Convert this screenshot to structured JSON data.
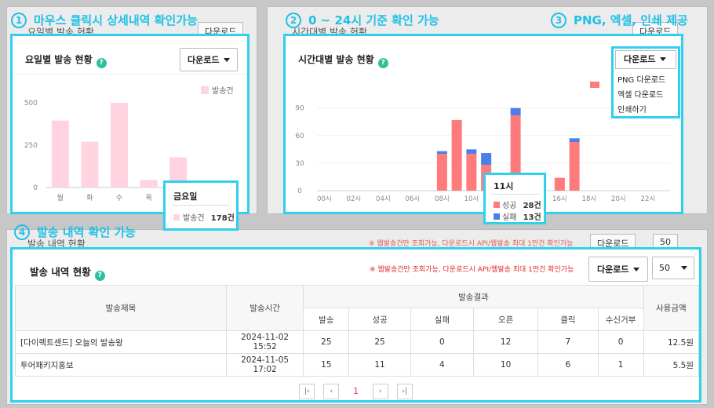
{
  "annotations": [
    {
      "num": "1",
      "text": "마우스 클릭시 상세내역 확인가능"
    },
    {
      "num": "2",
      "text": "0 ~ 24시 기준 확인 가능"
    },
    {
      "num": "3",
      "text": "PNG, 엑셀, 인쇄 제공"
    },
    {
      "num": "4",
      "text": "발송 내역 확인 가능"
    }
  ],
  "background": {
    "weekday_title": "요일별 발송 현황",
    "hourly_title": "시간대별 발송 현황",
    "history_title": "발송 내역 현황",
    "download_label": "다운로드",
    "note": "※ 웹발송건만 조회가능, 다운로드시 API/웹발송 최대 1만건 확인가능",
    "page_size": "50"
  },
  "weekday_chart": {
    "title": "요일별 발송 현황",
    "download_label": "다운로드",
    "legend_label": "발송건",
    "bar_color": "#ffd3e0",
    "chart_data": {
      "type": "bar",
      "categories": [
        "월",
        "화",
        "수",
        "목",
        "금"
      ],
      "values": [
        395,
        270,
        500,
        45,
        178
      ],
      "ylim": [
        0,
        500
      ],
      "yticks": [
        0,
        250,
        500
      ],
      "legend": "top-right",
      "series": [
        {
          "name": "발송건",
          "values": [
            395,
            270,
            500,
            45,
            178
          ]
        }
      ]
    },
    "tooltip": {
      "title": "금요일",
      "label": "발송건",
      "value": "178건"
    }
  },
  "hourly_chart": {
    "title": "시간대별 발송 현황",
    "download_label": "다운로드",
    "dropdown_items": [
      "PNG 다운로드",
      "엑셀 다운로드",
      "인쇄하기"
    ],
    "success_color": "#ff7b7b",
    "fail_color": "#4d7ee8",
    "chart_data": {
      "type": "bar",
      "stacked": true,
      "categories": [
        "00시",
        "01시",
        "02시",
        "03시",
        "04시",
        "05시",
        "06시",
        "07시",
        "08시",
        "09시",
        "10시",
        "11시",
        "12시",
        "13시",
        "14시",
        "15시",
        "16시",
        "17시",
        "18시",
        "19시",
        "20시",
        "21시",
        "22시",
        "23시"
      ],
      "xtick_labels": [
        "00시",
        "02시",
        "04시",
        "06시",
        "08시",
        "10시",
        "12시",
        "14시",
        "16시",
        "18시",
        "20시",
        "22시"
      ],
      "ylim": [
        0,
        100
      ],
      "yticks": [
        0,
        30,
        60,
        90
      ],
      "legend": "top-right",
      "series": [
        {
          "name": "성공",
          "values": [
            0,
            0,
            0,
            0,
            0,
            0,
            0,
            0,
            40,
            77,
            40,
            28,
            0,
            82,
            0,
            0,
            14,
            53,
            0,
            0,
            0,
            0,
            0,
            0
          ]
        },
        {
          "name": "실패",
          "values": [
            0,
            0,
            0,
            0,
            0,
            0,
            0,
            0,
            3,
            0,
            5,
            13,
            0,
            8,
            0,
            0,
            0,
            4,
            0,
            0,
            0,
            0,
            0,
            0
          ]
        }
      ]
    },
    "tooltip": {
      "title": "11시",
      "rows": [
        {
          "label": "성공",
          "value": "28건"
        },
        {
          "label": "실패",
          "value": "13건"
        }
      ]
    }
  },
  "history": {
    "title": "발송 내역 현황",
    "note": "※ 웹발송건만 조회가능, 다운로드시 API/웹발송 최대 1만건 확인가능",
    "download_label": "다운로드",
    "page_size": "50",
    "headers": {
      "title": "발송제목",
      "time": "발송시간",
      "result": "발송결과",
      "sent": "발송",
      "success": "성공",
      "fail": "실패",
      "open": "오픈",
      "click": "클릭",
      "reject": "수신거부",
      "amount": "사용금액"
    },
    "rows": [
      {
        "title": "[다이렉트센드] 오늘의 발송왕",
        "time": "2024-11-02 15:52",
        "sent": "25",
        "success": "25",
        "fail": "0",
        "open": "12",
        "click": "7",
        "reject": "0",
        "amount": "12.5원"
      },
      {
        "title": "투어패키지홍보",
        "time": "2024-11-05 17:02",
        "sent": "15",
        "success": "11",
        "fail": "4",
        "open": "10",
        "click": "6",
        "reject": "1",
        "amount": "5.5원"
      }
    ],
    "pagination": {
      "first": "|‹",
      "prev": "‹",
      "current": "1",
      "next": "›",
      "last": "›|"
    }
  }
}
